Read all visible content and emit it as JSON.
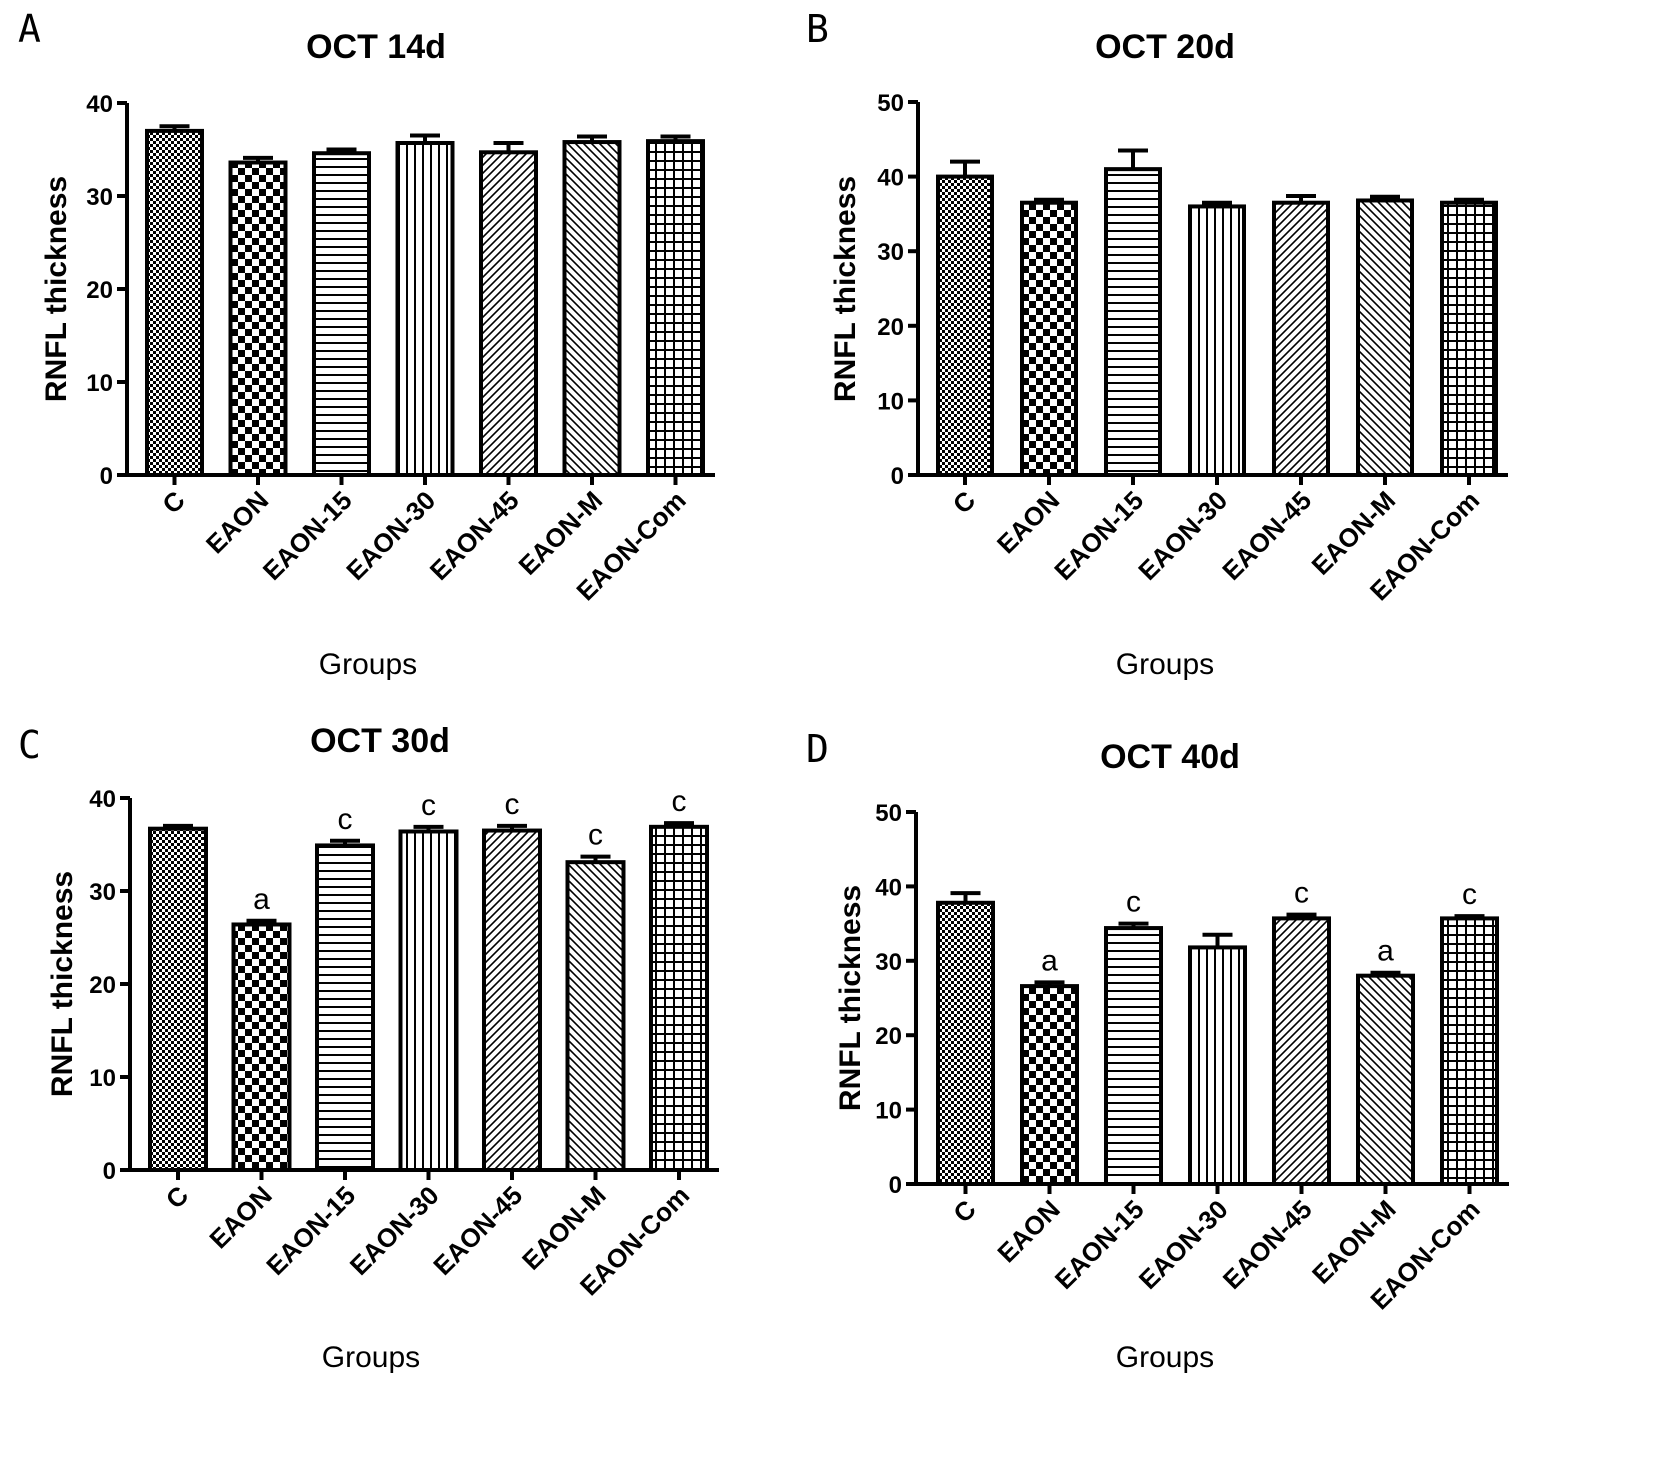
{
  "chart_data": [
    {
      "type": "bar",
      "panel": "A",
      "title": "OCT 14d",
      "xlabel": "Groups",
      "ylabel": "RNFL thickness",
      "ylim": [
        0,
        40
      ],
      "yticks": [
        0,
        10,
        20,
        30,
        40
      ],
      "categories": [
        "C",
        "EAON",
        "EAON-15",
        "EAON-30",
        "EAON-45",
        "EAON-M",
        "EAON-Com"
      ],
      "values": [
        37.0,
        33.6,
        34.6,
        35.7,
        34.7,
        35.8,
        35.9
      ],
      "errors": [
        0.5,
        0.5,
        0.4,
        0.8,
        1.0,
        0.6,
        0.5
      ],
      "annotations": [
        "",
        "",
        "",
        "",
        "",
        "",
        ""
      ]
    },
    {
      "type": "bar",
      "panel": "B",
      "title": "OCT 20d",
      "xlabel": "Groups",
      "ylabel": "RNFL thickness",
      "ylim": [
        0,
        50
      ],
      "yticks": [
        0,
        10,
        20,
        30,
        40,
        50
      ],
      "categories": [
        "C",
        "EAON",
        "EAON-15",
        "EAON-30",
        "EAON-45",
        "EAON-M",
        "EAON-Com"
      ],
      "values": [
        40.0,
        36.5,
        41.0,
        36.0,
        36.5,
        36.8,
        36.5
      ],
      "errors": [
        2.0,
        0.4,
        2.5,
        0.5,
        0.9,
        0.5,
        0.4
      ],
      "annotations": [
        "",
        "",
        "",
        "",
        "",
        "",
        ""
      ]
    },
    {
      "type": "bar",
      "panel": "C",
      "title": "OCT 30d",
      "xlabel": "Groups",
      "ylabel": "RNFL thickness",
      "ylim": [
        0,
        40
      ],
      "yticks": [
        0,
        10,
        20,
        30,
        40
      ],
      "categories": [
        "C",
        "EAON",
        "EAON-15",
        "EAON-30",
        "EAON-45",
        "EAON-M",
        "EAON-Com"
      ],
      "values": [
        36.7,
        26.4,
        34.9,
        36.4,
        36.5,
        33.1,
        36.9
      ],
      "errors": [
        0.3,
        0.4,
        0.5,
        0.5,
        0.5,
        0.6,
        0.4
      ],
      "annotations": [
        "",
        "a",
        "c",
        "c",
        "c",
        "c",
        "c"
      ]
    },
    {
      "type": "bar",
      "panel": "D",
      "title": "OCT 40d",
      "xlabel": "Groups",
      "ylabel": "RNFL thickness",
      "ylim": [
        0,
        50
      ],
      "yticks": [
        0,
        10,
        20,
        30,
        40,
        50
      ],
      "categories": [
        "C",
        "EAON",
        "EAON-15",
        "EAON-30",
        "EAON-45",
        "EAON-M",
        "EAON-Com"
      ],
      "values": [
        37.8,
        26.6,
        34.4,
        31.8,
        35.7,
        28.0,
        35.7
      ],
      "errors": [
        1.3,
        0.5,
        0.6,
        1.7,
        0.5,
        0.4,
        0.3
      ],
      "annotations": [
        "",
        "a",
        "c",
        "",
        "c",
        "a",
        "c"
      ]
    }
  ]
}
